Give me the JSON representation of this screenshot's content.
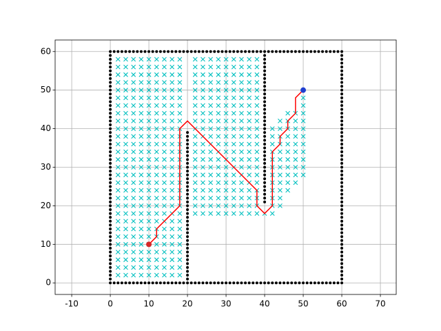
{
  "chart_data": {
    "type": "scatter",
    "xlim": [
      -14.3,
      74.1
    ],
    "ylim": [
      -3,
      63
    ],
    "xticks": [
      -10,
      0,
      10,
      20,
      30,
      40,
      50,
      60,
      70
    ],
    "yticks": [
      0,
      10,
      20,
      30,
      40,
      50,
      60
    ],
    "grid": true,
    "obstacle_color": "#000000",
    "visited_color": "#00bfbf",
    "path_color": "#ff0000",
    "start_color": "#d62728",
    "goal_color": "#1f3fd0",
    "obstacles": [
      {
        "y": 0,
        "x": [
          0,
          1,
          2,
          3,
          4,
          5,
          6,
          7,
          8,
          9,
          10,
          11,
          12,
          13,
          14,
          15,
          16,
          17,
          18,
          19,
          20,
          21,
          22,
          23,
          24,
          25,
          26,
          27,
          28,
          29,
          30,
          31,
          32,
          33,
          34,
          35,
          36,
          37,
          38,
          39,
          40,
          41,
          42,
          43,
          44,
          45,
          46,
          47,
          48,
          49,
          50,
          51,
          52,
          53,
          54,
          55,
          56,
          57,
          58,
          59,
          60
        ]
      },
      {
        "y": 60,
        "x": [
          0,
          1,
          2,
          3,
          4,
          5,
          6,
          7,
          8,
          9,
          10,
          11,
          12,
          13,
          14,
          15,
          16,
          17,
          18,
          19,
          20,
          21,
          22,
          23,
          24,
          25,
          26,
          27,
          28,
          29,
          30,
          31,
          32,
          33,
          34,
          35,
          36,
          37,
          38,
          39,
          40,
          41,
          42,
          43,
          44,
          45,
          46,
          47,
          48,
          49,
          50,
          51,
          52,
          53,
          54,
          55,
          56,
          57,
          58,
          59,
          60
        ]
      },
      {
        "x": 0,
        "y": [
          1,
          2,
          3,
          4,
          5,
          6,
          7,
          8,
          9,
          10,
          11,
          12,
          13,
          14,
          15,
          16,
          17,
          18,
          19,
          20,
          21,
          22,
          23,
          24,
          25,
          26,
          27,
          28,
          29,
          30,
          31,
          32,
          33,
          34,
          35,
          36,
          37,
          38,
          39,
          40,
          41,
          42,
          43,
          44,
          45,
          46,
          47,
          48,
          49,
          50,
          51,
          52,
          53,
          54,
          55,
          56,
          57,
          58,
          59
        ]
      },
      {
        "x": 60,
        "y": [
          1,
          2,
          3,
          4,
          5,
          6,
          7,
          8,
          9,
          10,
          11,
          12,
          13,
          14,
          15,
          16,
          17,
          18,
          19,
          20,
          21,
          22,
          23,
          24,
          25,
          26,
          27,
          28,
          29,
          30,
          31,
          32,
          33,
          34,
          35,
          36,
          37,
          38,
          39,
          40,
          41,
          42,
          43,
          44,
          45,
          46,
          47,
          48,
          49,
          50,
          51,
          52,
          53,
          54,
          55,
          56,
          57,
          58,
          59
        ]
      },
      {
        "x": 20,
        "y": [
          1,
          2,
          3,
          4,
          5,
          6,
          7,
          8,
          9,
          10,
          11,
          12,
          13,
          14,
          15,
          16,
          17,
          18,
          19,
          20,
          21,
          22,
          23,
          24,
          25,
          26,
          27,
          28,
          29,
          30,
          31,
          32,
          33,
          34,
          35,
          36,
          37,
          38,
          39
        ]
      },
      {
        "x": 40,
        "y": [
          21,
          22,
          23,
          24,
          25,
          26,
          27,
          28,
          29,
          30,
          31,
          32,
          33,
          34,
          35,
          36,
          37,
          38,
          39,
          40,
          41,
          42,
          43,
          44,
          45,
          46,
          47,
          48,
          49,
          50,
          51,
          52,
          53,
          54,
          55,
          56,
          57,
          58,
          59
        ]
      }
    ],
    "visited": [
      {
        "y": 2,
        "x": [
          2,
          4,
          6,
          8,
          10,
          12,
          14,
          16,
          18
        ]
      },
      {
        "y": 4,
        "x": [
          2,
          4,
          6,
          8,
          10,
          12,
          14,
          16,
          18
        ]
      },
      {
        "y": 6,
        "x": [
          2,
          4,
          6,
          8,
          10,
          12,
          14,
          16,
          18
        ]
      },
      {
        "y": 8,
        "x": [
          2,
          4,
          6,
          8,
          10,
          12,
          14,
          16,
          18
        ]
      },
      {
        "y": 10,
        "x": [
          2,
          4,
          6,
          8,
          10,
          12,
          14,
          16,
          18
        ]
      },
      {
        "y": 12,
        "x": [
          2,
          4,
          6,
          8,
          10,
          12,
          14,
          16,
          18
        ]
      },
      {
        "y": 14,
        "x": [
          2,
          4,
          6,
          8,
          10,
          12,
          14,
          16,
          18
        ]
      },
      {
        "y": 16,
        "x": [
          2,
          4,
          6,
          8,
          10,
          12,
          14,
          16,
          18
        ]
      },
      {
        "y": 18,
        "x": [
          2,
          4,
          6,
          8,
          10,
          12,
          14,
          16,
          18,
          22,
          24,
          26,
          28,
          30,
          32,
          34,
          36,
          38,
          40,
          42
        ]
      },
      {
        "y": 20,
        "x": [
          2,
          4,
          6,
          8,
          10,
          12,
          14,
          16,
          18,
          22,
          24,
          26,
          28,
          30,
          32,
          34,
          36,
          38,
          42,
          44
        ]
      },
      {
        "y": 22,
        "x": [
          2,
          4,
          6,
          8,
          10,
          12,
          14,
          16,
          18,
          22,
          24,
          26,
          28,
          30,
          32,
          34,
          36,
          38,
          42,
          44
        ]
      },
      {
        "y": 24,
        "x": [
          2,
          4,
          6,
          8,
          10,
          12,
          14,
          16,
          18,
          22,
          24,
          26,
          28,
          30,
          32,
          34,
          36,
          38,
          42,
          44,
          46
        ]
      },
      {
        "y": 26,
        "x": [
          2,
          4,
          6,
          8,
          10,
          12,
          14,
          16,
          18,
          22,
          24,
          26,
          28,
          30,
          32,
          34,
          36,
          38,
          42,
          44,
          46,
          48
        ]
      },
      {
        "y": 28,
        "x": [
          2,
          4,
          6,
          8,
          10,
          12,
          14,
          16,
          18,
          22,
          24,
          26,
          28,
          30,
          32,
          34,
          36,
          38,
          42,
          44,
          46,
          48,
          50
        ]
      },
      {
        "y": 30,
        "x": [
          2,
          4,
          6,
          8,
          10,
          12,
          14,
          16,
          18,
          22,
          24,
          26,
          28,
          30,
          32,
          34,
          36,
          38,
          42,
          44,
          46,
          48,
          50
        ]
      },
      {
        "y": 32,
        "x": [
          2,
          4,
          6,
          8,
          10,
          12,
          14,
          16,
          18,
          22,
          24,
          26,
          28,
          30,
          32,
          34,
          36,
          38,
          42,
          44,
          46,
          48,
          50
        ]
      },
      {
        "y": 34,
        "x": [
          2,
          4,
          6,
          8,
          10,
          12,
          14,
          16,
          18,
          22,
          24,
          26,
          28,
          30,
          32,
          34,
          36,
          38,
          42,
          44,
          46,
          48,
          50
        ]
      },
      {
        "y": 36,
        "x": [
          2,
          4,
          6,
          8,
          10,
          12,
          14,
          16,
          18,
          22,
          24,
          26,
          28,
          30,
          32,
          34,
          36,
          38,
          42,
          44,
          46,
          48,
          50
        ]
      },
      {
        "y": 38,
        "x": [
          2,
          4,
          6,
          8,
          10,
          12,
          14,
          16,
          18,
          22,
          24,
          26,
          28,
          30,
          32,
          34,
          36,
          38,
          42,
          44,
          46,
          48,
          50
        ]
      },
      {
        "y": 40,
        "x": [
          2,
          4,
          6,
          8,
          10,
          12,
          14,
          16,
          18,
          22,
          24,
          26,
          28,
          30,
          32,
          34,
          36,
          38,
          42,
          44,
          46,
          48,
          50
        ]
      },
      {
        "y": 42,
        "x": [
          2,
          4,
          6,
          8,
          10,
          12,
          14,
          16,
          18,
          22,
          24,
          26,
          28,
          30,
          32,
          34,
          36,
          38,
          44,
          46,
          48,
          50
        ]
      },
      {
        "y": 44,
        "x": [
          2,
          4,
          6,
          8,
          10,
          12,
          14,
          16,
          18,
          22,
          24,
          26,
          28,
          30,
          32,
          34,
          36,
          38,
          46,
          48,
          50
        ]
      },
      {
        "y": 46,
        "x": [
          2,
          4,
          6,
          8,
          10,
          12,
          14,
          16,
          18,
          22,
          24,
          26,
          28,
          30,
          32,
          34,
          36,
          38,
          50
        ]
      },
      {
        "y": 48,
        "x": [
          2,
          4,
          6,
          8,
          10,
          12,
          14,
          16,
          18,
          22,
          24,
          26,
          28,
          30,
          32,
          34,
          36,
          38,
          50
        ]
      },
      {
        "y": 50,
        "x": [
          2,
          4,
          6,
          8,
          10,
          12,
          14,
          16,
          18,
          22,
          24,
          26,
          28,
          30,
          32,
          34,
          36,
          38
        ]
      },
      {
        "y": 52,
        "x": [
          2,
          4,
          6,
          8,
          10,
          12,
          14,
          16,
          18,
          22,
          24,
          26,
          28,
          30,
          32,
          34,
          36,
          38
        ]
      },
      {
        "y": 54,
        "x": [
          2,
          4,
          6,
          8,
          10,
          12,
          14,
          16,
          18,
          22,
          24,
          26,
          28,
          30,
          32,
          34,
          36,
          38
        ]
      },
      {
        "y": 56,
        "x": [
          2,
          4,
          6,
          8,
          10,
          12,
          14,
          16,
          18,
          22,
          24,
          26,
          28,
          30,
          32,
          34,
          36,
          38
        ]
      },
      {
        "y": 58,
        "x": [
          2,
          4,
          6,
          8,
          10,
          12,
          14,
          16,
          18,
          22,
          24,
          26,
          28,
          30,
          32,
          34,
          36,
          38
        ]
      }
    ],
    "path": {
      "x": [
        10,
        12,
        12,
        18,
        18,
        20,
        38,
        38,
        40,
        42,
        42,
        44,
        44,
        46,
        46,
        48,
        48,
        50
      ],
      "y": [
        10,
        12,
        14,
        20,
        40,
        42,
        24,
        20,
        18,
        20,
        34,
        36,
        38,
        40,
        42,
        44,
        48,
        50
      ]
    },
    "start": {
      "x": 10,
      "y": 10
    },
    "goal": {
      "x": 50,
      "y": 50
    }
  }
}
